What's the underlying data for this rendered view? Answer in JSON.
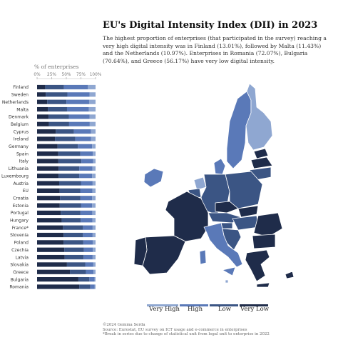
{
  "header": {
    "title": "EU's Digital Intensity Index (DII) in 2023",
    "subtitle": "The highest proportion of enterprises (that participated in the survey) reaching a very high digital intensity was in Finland (13.01%), followed by Malta (11.43%) and the Netherlands (10.97%). Enterprises in Romania (72.07%), Bulgaria (70.64%), and Greece (56.17%) have very low digital intensity."
  },
  "legend": {
    "items": [
      {
        "label": "Very High",
        "color": "#8fa7d1"
      },
      {
        "label": "High",
        "color": "#5a79b8"
      },
      {
        "label": "Low",
        "color": "#3b5584"
      },
      {
        "label": "Very Low",
        "color": "#1f2c4a"
      }
    ]
  },
  "footer": {
    "credit": "©2024 Gemma Serda",
    "source": "Source: Eurostat, EU survey on ICT usage and e-commerce in enterprises",
    "note": "*Break in series due to change of statistical unit from legal unit to enterprise in 2022"
  },
  "chart_data": [
    {
      "type": "bar",
      "orientation": "horizontal",
      "stacked": true,
      "xlabel": "% of enterprises",
      "xlim": [
        0,
        100
      ],
      "xticks": [
        "0%",
        "25%",
        "50%",
        "75%",
        "100%"
      ],
      "categories": [
        "Finland",
        "Sweden",
        "Netherlands",
        "Malta",
        "Denmark",
        "Belgium",
        "Cyprus",
        "Ireland",
        "Germany",
        "Spain",
        "Italy",
        "Lithuania",
        "Luxembourg",
        "Austria",
        "EU",
        "Croatia",
        "Estonia",
        "Portugal",
        "Hungary",
        "France*",
        "Slovenia",
        "Poland",
        "Czechia",
        "Latvia",
        "Slovakia",
        "Greece",
        "Bulgaria",
        "Romania"
      ],
      "series": [
        {
          "name": "Very Low",
          "color": "#1f2c4a",
          "values": [
            13.9,
            14.8,
            17.3,
            18.4,
            19.7,
            20.2,
            32.0,
            30.6,
            35.1,
            36.2,
            36.4,
            36.9,
            36.7,
            37.8,
            38.6,
            39.2,
            38.8,
            40.4,
            42.0,
            44.3,
            45.4,
            45.2,
            46.5,
            47.1,
            51.1,
            56.17,
            70.64,
            72.07
          ]
        },
        {
          "name": "Low",
          "color": "#3b5584",
          "values": [
            32.0,
            37.0,
            32.9,
            32.8,
            34.6,
            34.6,
            31.1,
            34.8,
            34.7,
            37.7,
            39.4,
            35.3,
            35.3,
            37.2,
            35.2,
            35.0,
            36.2,
            33.8,
            32.6,
            34.2,
            33.1,
            33.9,
            33.7,
            32.4,
            31.2,
            27.3,
            18.8,
            19.0
          ]
        },
        {
          "name": "High",
          "color": "#5a79b8",
          "values": [
            41.1,
            37.8,
            38.8,
            37.4,
            35.7,
            35.3,
            29.2,
            27.0,
            24.3,
            21.5,
            20.1,
            22.6,
            22.2,
            20.0,
            21.0,
            19.8,
            19.0,
            20.2,
            20.0,
            16.5,
            16.5,
            16.0,
            15.1,
            15.5,
            13.9,
            13.1,
            8.7,
            7.5
          ]
        },
        {
          "name": "Very High",
          "color": "#8fa7d1",
          "values": [
            13.01,
            10.4,
            10.97,
            11.43,
            10.0,
            9.9,
            7.7,
            7.6,
            5.9,
            4.6,
            4.1,
            5.2,
            5.8,
            5.0,
            5.2,
            6.0,
            6.0,
            5.6,
            5.4,
            5.0,
            5.0,
            4.9,
            4.7,
            5.0,
            3.8,
            3.43,
            1.86,
            1.43
          ]
        }
      ]
    },
    {
      "type": "map",
      "legend": [
        "Very High",
        "High",
        "Low",
        "Very Low"
      ],
      "regions": [
        {
          "name": "Finland",
          "class": "Very High"
        },
        {
          "name": "Sweden",
          "class": "High"
        },
        {
          "name": "Netherlands",
          "class": "Very High"
        },
        {
          "name": "Malta",
          "class": "Very High"
        },
        {
          "name": "Denmark",
          "class": "High"
        },
        {
          "name": "Ireland",
          "class": "High"
        },
        {
          "name": "Italy",
          "class": "High"
        },
        {
          "name": "Estonia",
          "class": "Very Low"
        },
        {
          "name": "Latvia",
          "class": "Very Low"
        },
        {
          "name": "Lithuania",
          "class": "Low"
        },
        {
          "name": "Poland",
          "class": "Low"
        },
        {
          "name": "Germany",
          "class": "Low"
        },
        {
          "name": "Belgium",
          "class": "Low"
        },
        {
          "name": "Luxembourg",
          "class": "Low"
        },
        {
          "name": "France",
          "class": "Very Low"
        },
        {
          "name": "Spain",
          "class": "Very Low"
        },
        {
          "name": "Portugal",
          "class": "Very Low"
        },
        {
          "name": "Austria",
          "class": "Low"
        },
        {
          "name": "Czechia",
          "class": "Very Low"
        },
        {
          "name": "Slovakia",
          "class": "Very Low"
        },
        {
          "name": "Hungary",
          "class": "Low"
        },
        {
          "name": "Slovenia",
          "class": "Low"
        },
        {
          "name": "Croatia",
          "class": "Low"
        },
        {
          "name": "Romania",
          "class": "Very Low"
        },
        {
          "name": "Bulgaria",
          "class": "Very Low"
        },
        {
          "name": "Greece",
          "class": "Very Low"
        },
        {
          "name": "Cyprus",
          "class": "Very Low"
        }
      ]
    }
  ]
}
